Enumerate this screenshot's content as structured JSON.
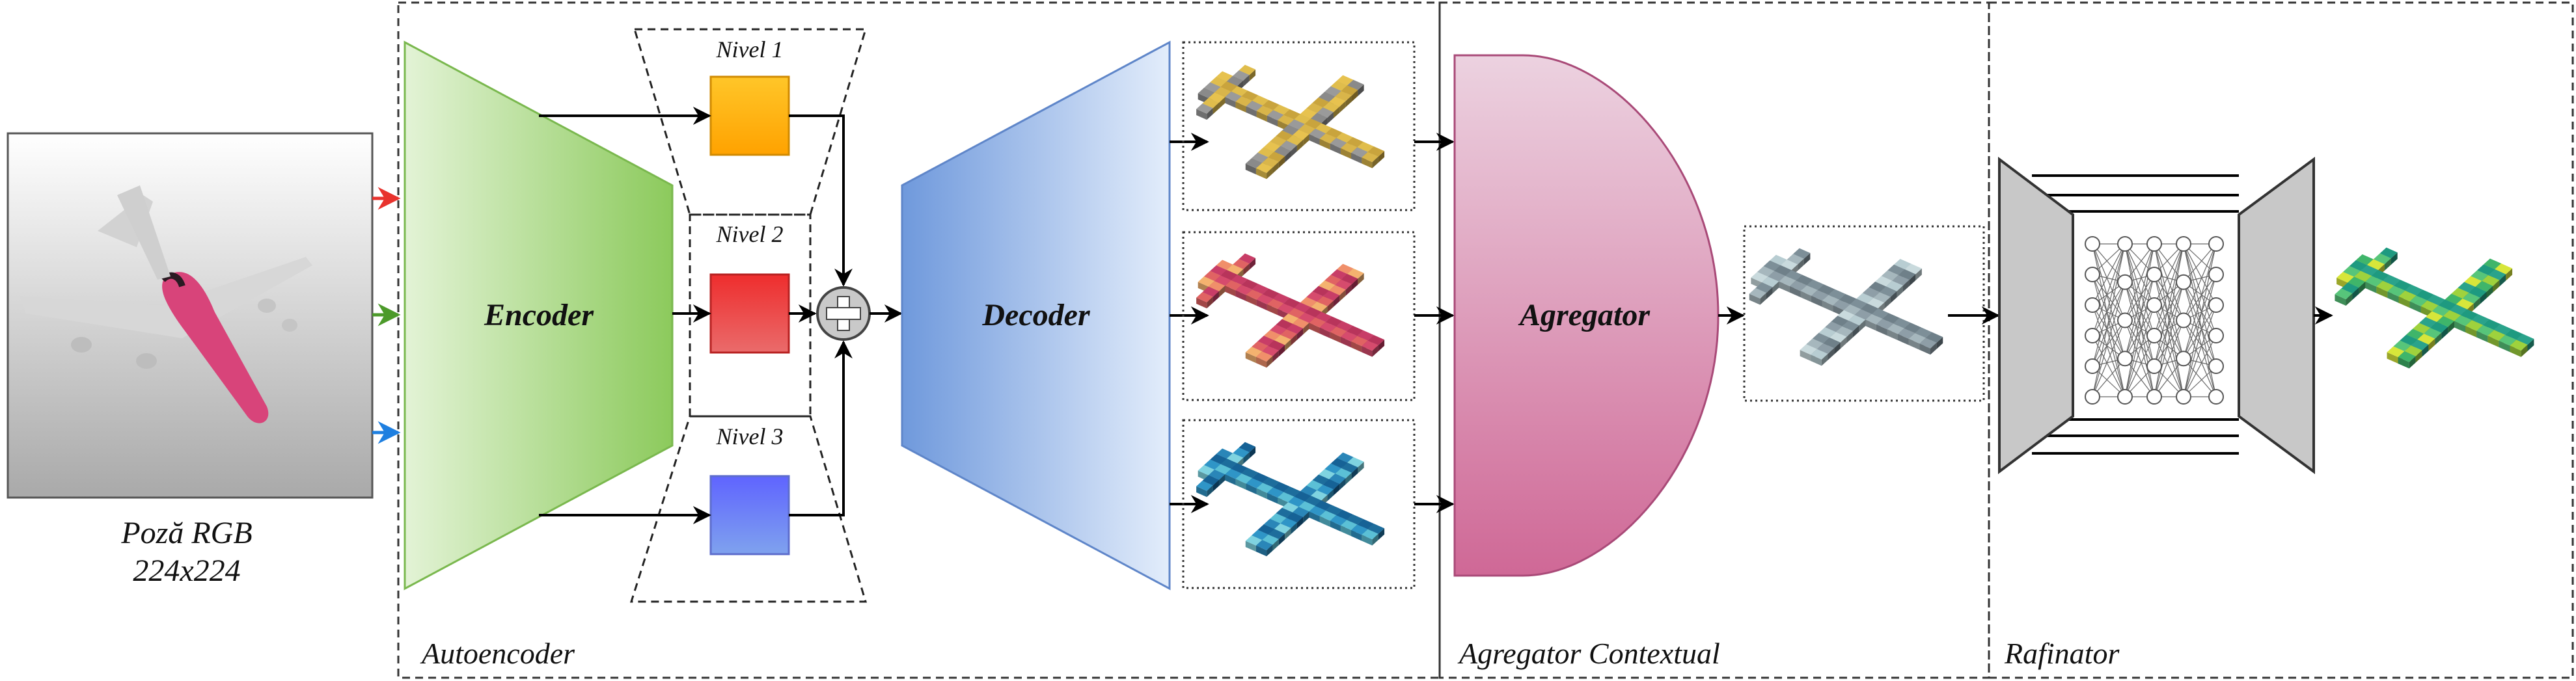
{
  "input": {
    "caption_line1": "Poză RGB",
    "caption_line2": "224x224"
  },
  "sections": {
    "autoencoder": "Autoencoder",
    "aggregator": "Agregator Contextual",
    "refiner": "Rafinator"
  },
  "blocks": {
    "encoder": "Encoder",
    "decoder": "Decoder",
    "aggregator": "Agregator"
  },
  "levels": [
    "Nivel 1",
    "Nivel 2",
    "Nivel 3"
  ],
  "colors": {
    "red_arrow": "#e8322d",
    "green_arrow": "#4c9a2a",
    "blue_arrow": "#1e7fe0",
    "encoder_fill": "#97cf6e",
    "decoder_fill": "#6f99dc",
    "aggregator_fill": "#d06b96",
    "level1": "#ffb300",
    "level2": "#ea3333",
    "level3": "#6b7bff",
    "refiner_trap": "#c8c8c8",
    "voxel_yellow": "#d9b54a",
    "voxel_pink": "#d64b6d",
    "voxel_blue": "#2a86b8",
    "voxel_gray": "#9aa8b0",
    "voxel_green": "#3fb56a"
  },
  "icons": [
    "airplane-photo",
    "sum-icon",
    "neural-network-icon",
    "voxel-airplane"
  ]
}
